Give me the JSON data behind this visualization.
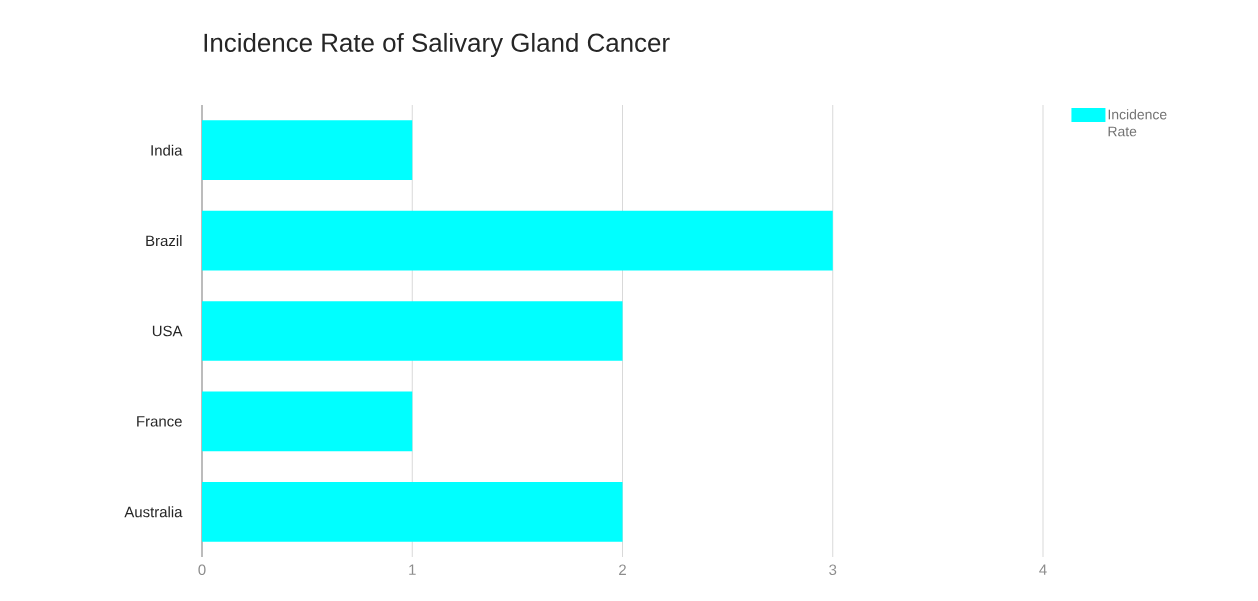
{
  "chart_data": {
    "type": "bar",
    "orientation": "horizontal",
    "title": "Incidence Rate of Salivary Gland Cancer",
    "categories": [
      "India",
      "Brazil",
      "USA",
      "France",
      "Australia"
    ],
    "series": [
      {
        "name": "Incidence Rate",
        "color": "#00ffff",
        "values": [
          1,
          3,
          2,
          1,
          2
        ]
      }
    ],
    "xlim": [
      0,
      4
    ],
    "xticks": [
      0,
      1,
      2,
      3,
      4
    ],
    "grid": "x",
    "legend": "top right"
  }
}
